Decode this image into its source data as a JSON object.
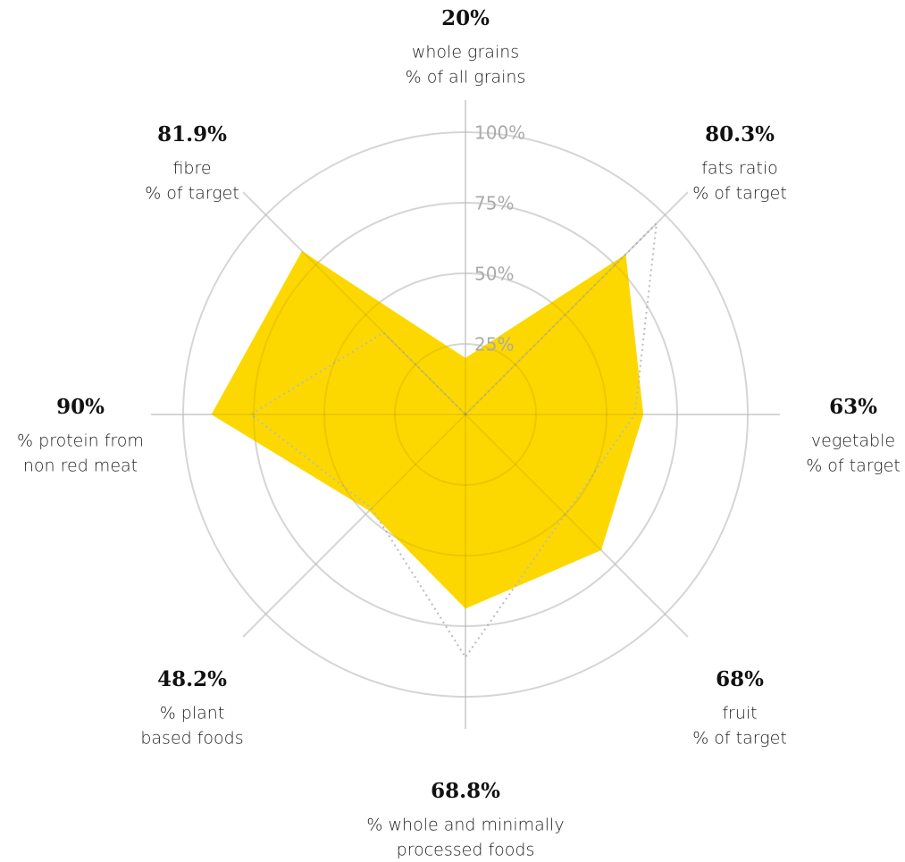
{
  "chart_data": {
    "type": "radar",
    "categories": [
      [
        "whole grains",
        "% of all grains"
      ],
      [
        "fats ratio",
        "% of target"
      ],
      [
        "vegetable",
        "% of target"
      ],
      [
        "fruit",
        "% of target"
      ],
      [
        "% whole and minimally",
        "processed foods"
      ],
      [
        "% plant",
        "based foods"
      ],
      [
        "% protein from",
        "non red meat"
      ],
      [
        "fibre",
        "% of target"
      ]
    ],
    "series": [
      {
        "color": "#fdd800",
        "values": [
          20,
          80.3,
          63,
          68,
          68.8,
          48.2,
          90,
          81.9
        ],
        "value_labels": [
          "20%",
          "80.3%",
          "63%",
          "68%",
          "68.8%",
          "48.2%",
          "90%",
          "81.9%"
        ]
      },
      {
        "color": "#bbbbbb",
        "values": [
          0,
          95.7,
          60,
          50,
          86,
          47,
          76,
          41
        ]
      }
    ],
    "rlim": [
      0,
      100
    ],
    "rticks": [
      {
        "value": 25,
        "label": "25%"
      },
      {
        "value": 50,
        "label": "50%"
      },
      {
        "value": 75,
        "label": "75%"
      },
      {
        "value": 100,
        "label": "100%"
      }
    ],
    "grid": true
  }
}
